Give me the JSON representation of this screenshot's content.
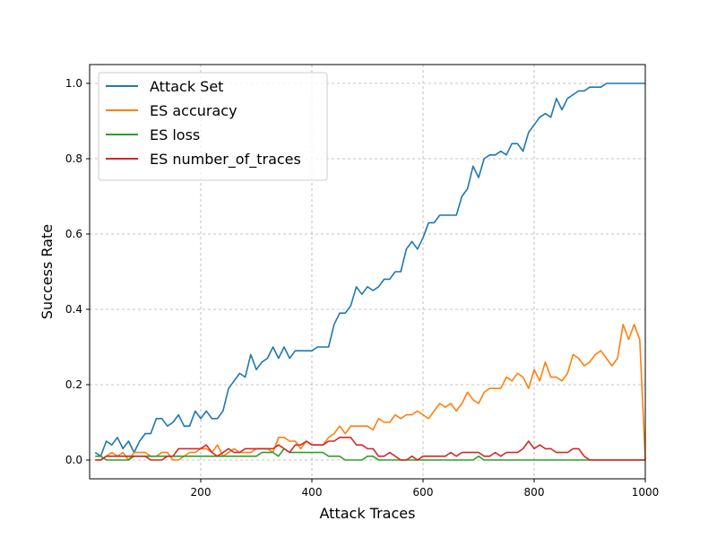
{
  "chart_data": {
    "type": "line",
    "title": "",
    "xlabel": "Attack Traces",
    "ylabel": "Success Rate",
    "xlim": [
      0,
      1000
    ],
    "ylim": [
      -0.05,
      1.05
    ],
    "xticks": [
      200,
      400,
      600,
      800,
      1000
    ],
    "yticks": [
      0.0,
      0.2,
      0.4,
      0.6,
      0.8,
      1.0
    ],
    "ytick_labels": [
      "0.0",
      "0.2",
      "0.4",
      "0.6",
      "0.8",
      "1.0"
    ],
    "grid": true,
    "legend_position": "top-left",
    "x": [
      10,
      20,
      30,
      40,
      50,
      60,
      70,
      80,
      90,
      100,
      110,
      120,
      130,
      140,
      150,
      160,
      170,
      180,
      190,
      200,
      210,
      220,
      230,
      240,
      250,
      260,
      270,
      280,
      290,
      300,
      310,
      320,
      330,
      340,
      350,
      360,
      370,
      380,
      390,
      400,
      410,
      420,
      430,
      440,
      450,
      460,
      470,
      480,
      490,
      500,
      510,
      520,
      530,
      540,
      550,
      560,
      570,
      580,
      590,
      600,
      610,
      620,
      630,
      640,
      650,
      660,
      670,
      680,
      690,
      700,
      710,
      720,
      730,
      740,
      750,
      760,
      770,
      780,
      790,
      800,
      810,
      820,
      830,
      840,
      850,
      860,
      870,
      880,
      890,
      900,
      910,
      920,
      930,
      940,
      950,
      960,
      970,
      980,
      990,
      1000
    ],
    "series": [
      {
        "name": "Attack Set",
        "color": "#1f77b4",
        "values": [
          0.02,
          0.01,
          0.05,
          0.04,
          0.06,
          0.03,
          0.05,
          0.02,
          0.05,
          0.07,
          0.07,
          0.11,
          0.11,
          0.09,
          0.1,
          0.12,
          0.09,
          0.09,
          0.13,
          0.11,
          0.13,
          0.11,
          0.11,
          0.13,
          0.19,
          0.21,
          0.23,
          0.22,
          0.28,
          0.24,
          0.26,
          0.27,
          0.3,
          0.27,
          0.3,
          0.27,
          0.29,
          0.29,
          0.29,
          0.29,
          0.3,
          0.3,
          0.3,
          0.36,
          0.39,
          0.39,
          0.41,
          0.46,
          0.44,
          0.46,
          0.45,
          0.46,
          0.48,
          0.48,
          0.5,
          0.5,
          0.56,
          0.58,
          0.56,
          0.59,
          0.63,
          0.63,
          0.65,
          0.65,
          0.65,
          0.65,
          0.7,
          0.72,
          0.78,
          0.75,
          0.8,
          0.81,
          0.81,
          0.82,
          0.81,
          0.84,
          0.84,
          0.82,
          0.87,
          0.89,
          0.91,
          0.92,
          0.91,
          0.96,
          0.93,
          0.96,
          0.97,
          0.98,
          0.98,
          0.99,
          0.99,
          0.99,
          1.0,
          1.0,
          1.0,
          1.0,
          1.0,
          1.0,
          1.0,
          1.0
        ]
      },
      {
        "name": "ES accuracy",
        "color": "#ff7f0e",
        "values": [
          0.0,
          0.0,
          0.01,
          0.02,
          0.01,
          0.02,
          0.0,
          0.02,
          0.02,
          0.02,
          0.01,
          0.01,
          0.02,
          0.02,
          0.0,
          0.0,
          0.01,
          0.02,
          0.02,
          0.03,
          0.03,
          0.02,
          0.04,
          0.01,
          0.02,
          0.03,
          0.02,
          0.02,
          0.02,
          0.03,
          0.03,
          0.03,
          0.02,
          0.06,
          0.06,
          0.05,
          0.05,
          0.03,
          0.05,
          0.04,
          0.04,
          0.04,
          0.06,
          0.07,
          0.09,
          0.07,
          0.09,
          0.09,
          0.09,
          0.09,
          0.08,
          0.11,
          0.1,
          0.1,
          0.12,
          0.11,
          0.12,
          0.12,
          0.13,
          0.12,
          0.11,
          0.13,
          0.15,
          0.14,
          0.15,
          0.13,
          0.15,
          0.18,
          0.16,
          0.15,
          0.18,
          0.19,
          0.19,
          0.19,
          0.22,
          0.21,
          0.23,
          0.22,
          0.19,
          0.24,
          0.21,
          0.26,
          0.22,
          0.22,
          0.21,
          0.23,
          0.28,
          0.27,
          0.25,
          0.26,
          0.28,
          0.29,
          0.27,
          0.25,
          0.27,
          0.36,
          0.32,
          0.36,
          0.32,
          0.0
        ]
      },
      {
        "name": "ES loss",
        "color": "#2ca02c",
        "values": [
          0.01,
          0.01,
          0.0,
          0.0,
          0.0,
          0.0,
          0.0,
          0.01,
          0.01,
          0.01,
          0.01,
          0.01,
          0.01,
          0.01,
          0.01,
          0.01,
          0.01,
          0.01,
          0.01,
          0.01,
          0.01,
          0.01,
          0.01,
          0.01,
          0.01,
          0.01,
          0.01,
          0.01,
          0.01,
          0.01,
          0.02,
          0.02,
          0.02,
          0.01,
          0.03,
          0.02,
          0.02,
          0.02,
          0.02,
          0.02,
          0.02,
          0.02,
          0.01,
          0.01,
          0.01,
          0.0,
          0.0,
          0.0,
          0.0,
          0.01,
          0.01,
          0.0,
          0.0,
          0.0,
          0.0,
          0.0,
          0.0,
          0.0,
          0.0,
          0.0,
          0.0,
          0.0,
          0.0,
          0.0,
          0.0,
          0.0,
          0.0,
          0.0,
          0.0,
          0.01,
          0.0,
          0.0,
          0.0,
          0.0,
          0.0,
          0.0,
          0.0,
          0.0,
          0.0,
          0.0,
          0.0,
          0.0,
          0.0,
          0.0,
          0.0,
          0.0,
          0.0,
          0.0,
          0.0,
          0.0,
          0.0,
          0.0,
          0.0,
          0.0,
          0.0,
          0.0,
          0.0,
          0.0,
          0.0,
          0.0
        ]
      },
      {
        "name": "ES number_of_traces",
        "color": "#d62728",
        "values": [
          0.0,
          0.0,
          0.01,
          0.01,
          0.01,
          0.01,
          0.01,
          0.01,
          0.01,
          0.01,
          0.0,
          0.0,
          0.0,
          0.01,
          0.01,
          0.03,
          0.03,
          0.03,
          0.03,
          0.03,
          0.04,
          0.02,
          0.01,
          0.02,
          0.03,
          0.02,
          0.02,
          0.03,
          0.03,
          0.03,
          0.03,
          0.03,
          0.03,
          0.04,
          0.03,
          0.02,
          0.04,
          0.04,
          0.05,
          0.04,
          0.04,
          0.04,
          0.05,
          0.05,
          0.06,
          0.06,
          0.06,
          0.04,
          0.04,
          0.03,
          0.03,
          0.01,
          0.01,
          0.02,
          0.01,
          0.0,
          0.0,
          0.01,
          0.0,
          0.01,
          0.01,
          0.01,
          0.01,
          0.01,
          0.02,
          0.01,
          0.02,
          0.02,
          0.02,
          0.02,
          0.01,
          0.01,
          0.02,
          0.01,
          0.02,
          0.02,
          0.02,
          0.03,
          0.05,
          0.03,
          0.04,
          0.03,
          0.03,
          0.02,
          0.02,
          0.02,
          0.03,
          0.03,
          0.01,
          0.0,
          0.0,
          0.0,
          0.0,
          0.0,
          0.0,
          0.0,
          0.0,
          0.0,
          0.0,
          0.0
        ]
      }
    ]
  }
}
